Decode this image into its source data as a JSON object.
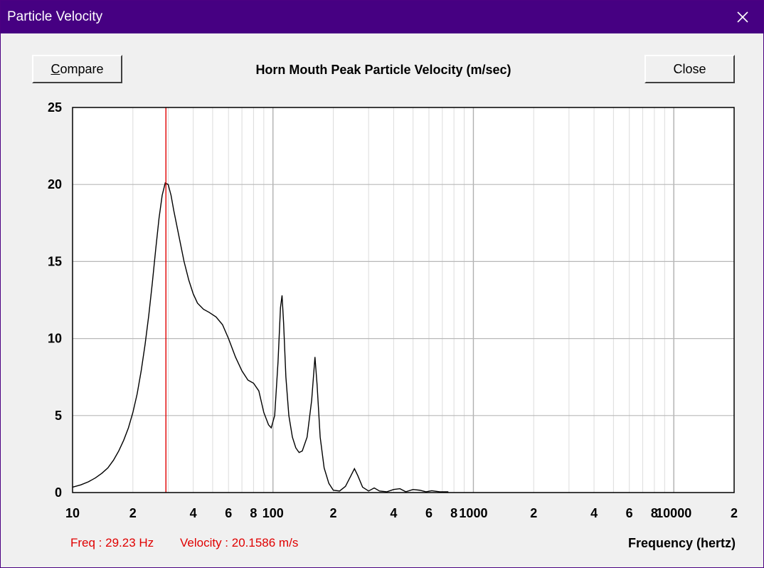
{
  "window": {
    "title": "Particle Velocity",
    "titlebar_color": "#460082"
  },
  "toolbar": {
    "compare_label_underlined": "C",
    "compare_label_rest": "ompare",
    "close_label": "Close"
  },
  "readout": {
    "freq_text": "Freq : 29.23 Hz",
    "velocity_text": "Velocity : 20.1586 m/s",
    "color": "#e00000"
  },
  "chart_data": {
    "type": "line",
    "title": "Horn Mouth Peak Particle Velocity (m/sec)",
    "xlabel": "Frequency (hertz)",
    "ylabel": "",
    "xscale": "log",
    "xlim": [
      10,
      20000
    ],
    "ylim": [
      0,
      25
    ],
    "grid": true,
    "y_ticks": [
      0,
      5,
      10,
      15,
      20,
      25
    ],
    "x_ticks": [
      {
        "value": 10,
        "label": "10"
      },
      {
        "value": 20,
        "label": "2"
      },
      {
        "value": 40,
        "label": "4"
      },
      {
        "value": 60,
        "label": "6"
      },
      {
        "value": 80,
        "label": "8"
      },
      {
        "value": 100,
        "label": "100"
      },
      {
        "value": 200,
        "label": "2"
      },
      {
        "value": 400,
        "label": "4"
      },
      {
        "value": 600,
        "label": "6"
      },
      {
        "value": 800,
        "label": "8"
      },
      {
        "value": 1000,
        "label": "1000"
      },
      {
        "value": 2000,
        "label": "2"
      },
      {
        "value": 4000,
        "label": "4"
      },
      {
        "value": 6000,
        "label": "6"
      },
      {
        "value": 8000,
        "label": "8"
      },
      {
        "value": 10000,
        "label": "10000"
      },
      {
        "value": 20000,
        "label": "2"
      }
    ],
    "cursor_frequency": 29.23,
    "cursor_color": "#e00000",
    "series": [
      {
        "color": "#000000",
        "points": [
          [
            10,
            0.35
          ],
          [
            11,
            0.5
          ],
          [
            12,
            0.7
          ],
          [
            13,
            0.95
          ],
          [
            14,
            1.25
          ],
          [
            15,
            1.6
          ],
          [
            16,
            2.1
          ],
          [
            17,
            2.7
          ],
          [
            18,
            3.4
          ],
          [
            19,
            4.2
          ],
          [
            20,
            5.2
          ],
          [
            21,
            6.4
          ],
          [
            22,
            7.9
          ],
          [
            23,
            9.6
          ],
          [
            24,
            11.5
          ],
          [
            25,
            13.6
          ],
          [
            26,
            15.8
          ],
          [
            27,
            17.8
          ],
          [
            28,
            19.3
          ],
          [
            29,
            20.1
          ],
          [
            30,
            20.0
          ],
          [
            31,
            19.3
          ],
          [
            32,
            18.3
          ],
          [
            34,
            16.6
          ],
          [
            36,
            15.0
          ],
          [
            38,
            13.8
          ],
          [
            40,
            12.9
          ],
          [
            42,
            12.3
          ],
          [
            45,
            11.9
          ],
          [
            48,
            11.7
          ],
          [
            52,
            11.4
          ],
          [
            56,
            10.9
          ],
          [
            60,
            10.0
          ],
          [
            65,
            8.8
          ],
          [
            70,
            7.9
          ],
          [
            75,
            7.3
          ],
          [
            80,
            7.1
          ],
          [
            85,
            6.6
          ],
          [
            90,
            5.2
          ],
          [
            95,
            4.4
          ],
          [
            98,
            4.2
          ],
          [
            102,
            5.0
          ],
          [
            106,
            8.5
          ],
          [
            109,
            12.0
          ],
          [
            111,
            12.8
          ],
          [
            113,
            11.0
          ],
          [
            116,
            7.5
          ],
          [
            120,
            5.0
          ],
          [
            125,
            3.6
          ],
          [
            130,
            2.9
          ],
          [
            135,
            2.6
          ],
          [
            140,
            2.7
          ],
          [
            148,
            3.6
          ],
          [
            156,
            6.0
          ],
          [
            162,
            8.8
          ],
          [
            166,
            7.0
          ],
          [
            172,
            3.6
          ],
          [
            180,
            1.6
          ],
          [
            190,
            0.6
          ],
          [
            200,
            0.15
          ],
          [
            215,
            0.1
          ],
          [
            230,
            0.4
          ],
          [
            245,
            1.1
          ],
          [
            255,
            1.55
          ],
          [
            265,
            1.1
          ],
          [
            280,
            0.35
          ],
          [
            300,
            0.1
          ],
          [
            320,
            0.3
          ],
          [
            340,
            0.1
          ],
          [
            370,
            0.05
          ],
          [
            400,
            0.2
          ],
          [
            430,
            0.25
          ],
          [
            460,
            0.05
          ],
          [
            500,
            0.2
          ],
          [
            540,
            0.15
          ],
          [
            580,
            0.05
          ],
          [
            620,
            0.12
          ],
          [
            680,
            0.05
          ],
          [
            750,
            0.05
          ]
        ]
      }
    ]
  }
}
